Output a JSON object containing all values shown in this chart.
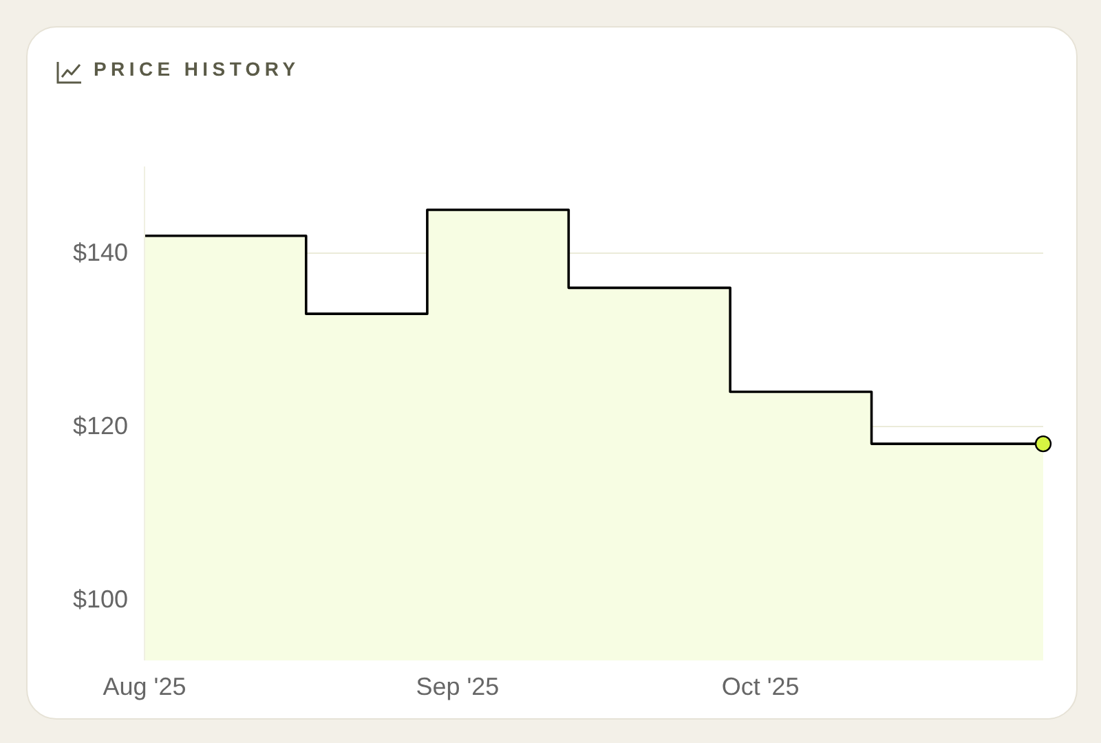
{
  "chart_data": {
    "type": "step",
    "title": "PRICE HISTORY",
    "x": [
      "2025-08-01",
      "2025-08-17",
      "2025-08-29",
      "2025-09-12",
      "2025-09-28",
      "2025-10-12",
      "2025-10-29"
    ],
    "series": [
      {
        "type": "area",
        "color": "#f7fde3",
        "values": [
          142,
          133,
          145,
          136,
          124,
          118,
          118
        ]
      },
      {
        "type": "step",
        "color": "#000000",
        "values": [
          142,
          133,
          145,
          136,
          124,
          118,
          118
        ]
      },
      {
        "type": "scatter",
        "color": "#d7f542",
        "x": [
          "2025-10-29"
        ],
        "values": [
          118
        ]
      }
    ],
    "xlim": [
      "2025-08-01",
      "2025-10-29"
    ],
    "xticks": [
      {
        "value": "2025-08-01",
        "label": "Aug '25"
      },
      {
        "value": "2025-09-01",
        "label": "Sep '25"
      },
      {
        "value": "2025-10-01",
        "label": "Oct '25"
      }
    ],
    "ylim": [
      93,
      150
    ],
    "yticks": [
      {
        "value": 100,
        "label": "$100"
      },
      {
        "value": 120,
        "label": "$120"
      },
      {
        "value": 140,
        "label": "$140"
      }
    ],
    "grid": "y"
  }
}
